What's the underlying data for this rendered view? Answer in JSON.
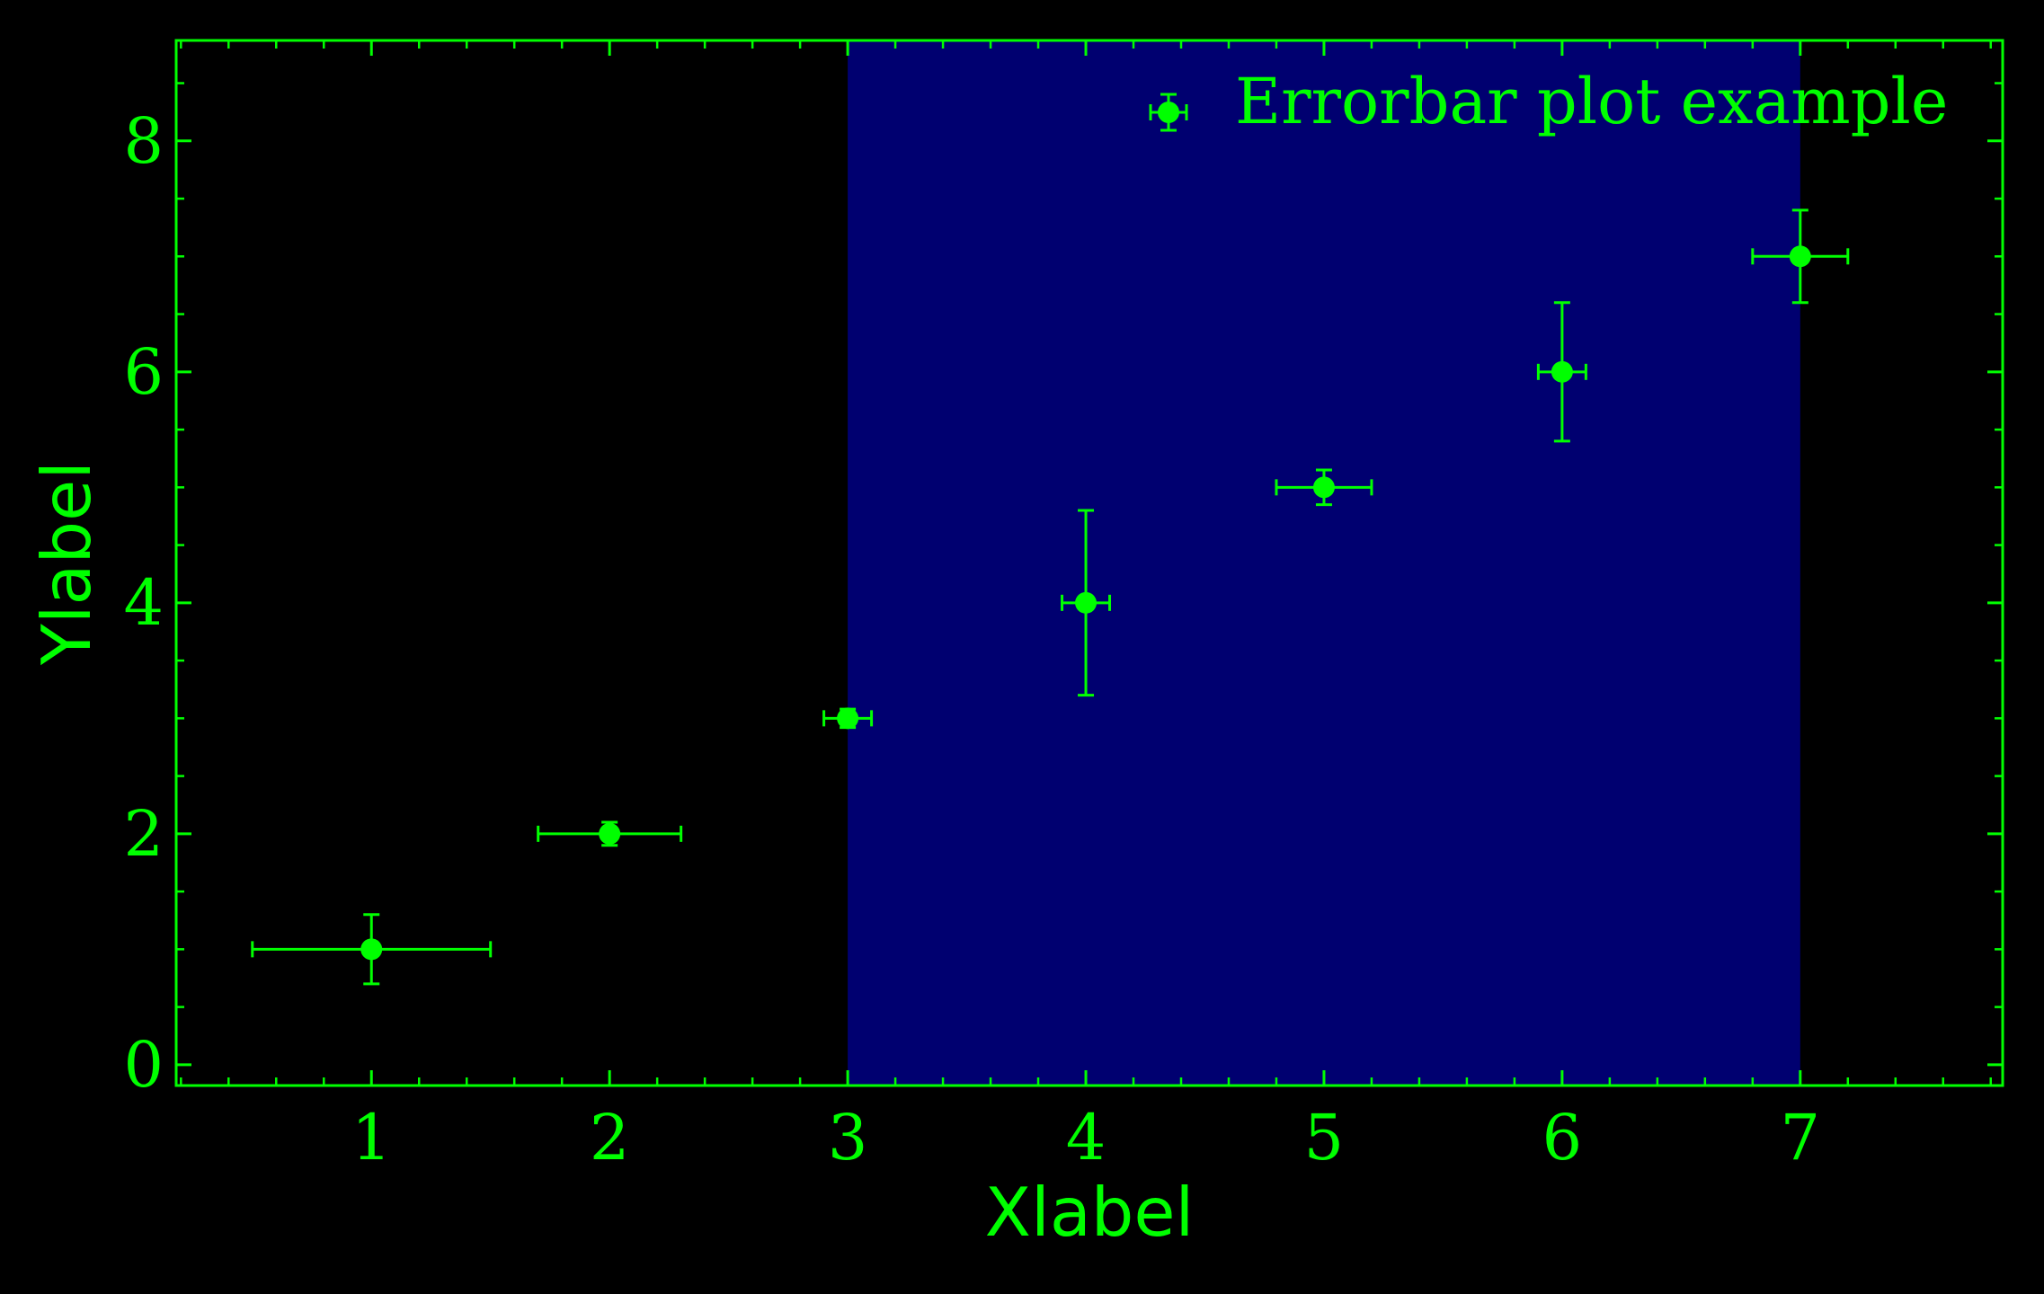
{
  "chart_data": {
    "type": "scatter",
    "title": "",
    "xlabel": "Xlabel",
    "ylabel": "Ylabel",
    "xlim": [
      0.18,
      7.85
    ],
    "ylim": [
      -0.18,
      8.87
    ],
    "xticks": [
      1,
      2,
      3,
      4,
      5,
      6,
      7
    ],
    "xtick_labels": [
      "1",
      "2",
      "3",
      "4",
      "5",
      "6",
      "7"
    ],
    "yticks": [
      0,
      2,
      4,
      6,
      8
    ],
    "ytick_labels": [
      "0",
      "2",
      "4",
      "6",
      "8"
    ],
    "grid": false,
    "legend_position": "top-right",
    "highlight_band": {
      "x_from": 3,
      "x_to": 7,
      "color": "#000070"
    },
    "series": [
      {
        "name": "Errorbar plot example",
        "color": "#00ff00",
        "marker": "circle",
        "points": [
          {
            "x": 1,
            "y": 1,
            "xerr": 0.5,
            "yerr": 0.3
          },
          {
            "x": 2,
            "y": 2,
            "xerr": 0.3,
            "yerr": 0.1
          },
          {
            "x": 3,
            "y": 3,
            "xerr": 0.1,
            "yerr": 0.08
          },
          {
            "x": 4,
            "y": 4,
            "xerr": 0.1,
            "yerr": 0.8
          },
          {
            "x": 5,
            "y": 5,
            "xerr": 0.2,
            "yerr": 0.15
          },
          {
            "x": 6,
            "y": 6,
            "xerr": 0.1,
            "yerr": 0.6
          },
          {
            "x": 7,
            "y": 7,
            "xerr": 0.2,
            "yerr": 0.4
          }
        ]
      }
    ]
  },
  "colors": {
    "background": "#000000",
    "foreground": "#00ff00",
    "band": "#000070"
  }
}
